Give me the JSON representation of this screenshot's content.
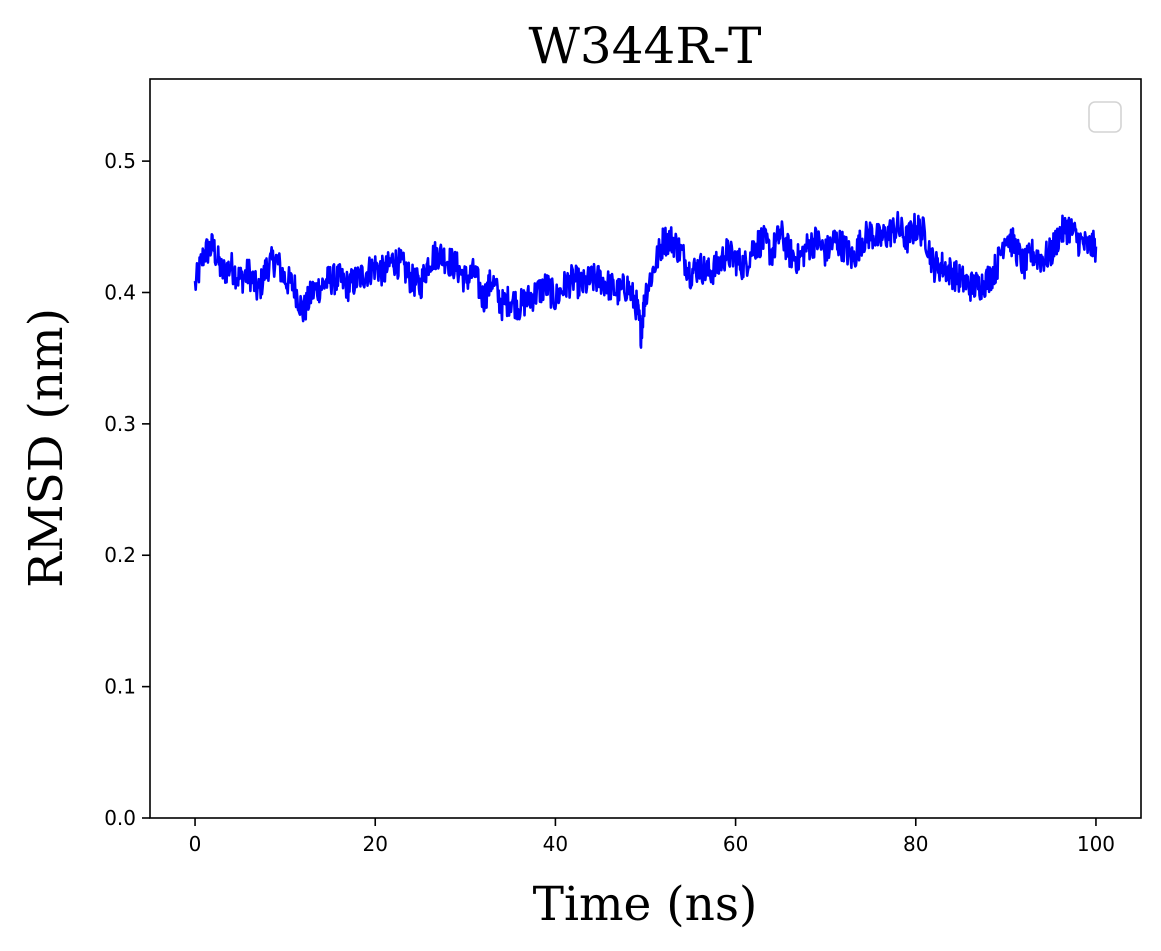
{
  "chart_data": {
    "type": "line",
    "title": "W344R-T",
    "xlabel": "Time (ns)",
    "ylabel": "RMSD (nm)",
    "xlim": [
      -5,
      105
    ],
    "ylim": [
      0.0,
      0.5625
    ],
    "xticks": [
      0,
      20,
      40,
      60,
      80,
      100
    ],
    "yticks": [
      0.0,
      0.1,
      0.2,
      0.3,
      0.4,
      0.5
    ],
    "xtick_labels": [
      "0",
      "20",
      "40",
      "60",
      "80",
      "100"
    ],
    "ytick_labels": [
      "0.0",
      "0.1",
      "0.2",
      "0.3",
      "0.4",
      "0.5"
    ],
    "grid": false,
    "legend": {
      "placement": "top-right",
      "entries": []
    },
    "series": [
      {
        "color": "#0000ff",
        "x": [
          0,
          1,
          2,
          3,
          4,
          5,
          6,
          7,
          8,
          9,
          10,
          11,
          12,
          13,
          14,
          15,
          16,
          17,
          18,
          19,
          20,
          21,
          22,
          23,
          24,
          25,
          26,
          27,
          28,
          29,
          30,
          31,
          32,
          33,
          34,
          35,
          36,
          37,
          38,
          39,
          40,
          41,
          42,
          43,
          44,
          45,
          46,
          47,
          48,
          49,
          49.5,
          50,
          51,
          52,
          53,
          54,
          55,
          56,
          57,
          58,
          59,
          60,
          61,
          62,
          63,
          64,
          65,
          66,
          67,
          68,
          69,
          70,
          71,
          72,
          73,
          74,
          75,
          76,
          77,
          78,
          79,
          80,
          81,
          82,
          83,
          84,
          85,
          86,
          87,
          88,
          89,
          90,
          91,
          92,
          93,
          94,
          95,
          96,
          97,
          98,
          99,
          100
        ],
        "y": [
          0.405,
          0.43,
          0.435,
          0.415,
          0.42,
          0.41,
          0.415,
          0.4,
          0.42,
          0.425,
          0.41,
          0.405,
          0.385,
          0.4,
          0.405,
          0.41,
          0.41,
          0.405,
          0.41,
          0.415,
          0.42,
          0.415,
          0.425,
          0.42,
          0.41,
          0.405,
          0.425,
          0.43,
          0.425,
          0.42,
          0.41,
          0.415,
          0.395,
          0.41,
          0.39,
          0.395,
          0.39,
          0.395,
          0.4,
          0.405,
          0.395,
          0.405,
          0.41,
          0.405,
          0.41,
          0.41,
          0.405,
          0.4,
          0.405,
          0.39,
          0.37,
          0.4,
          0.42,
          0.44,
          0.44,
          0.43,
          0.415,
          0.42,
          0.415,
          0.42,
          0.43,
          0.425,
          0.42,
          0.435,
          0.44,
          0.43,
          0.445,
          0.43,
          0.425,
          0.435,
          0.44,
          0.43,
          0.44,
          0.435,
          0.425,
          0.44,
          0.445,
          0.44,
          0.445,
          0.45,
          0.44,
          0.45,
          0.445,
          0.42,
          0.42,
          0.415,
          0.41,
          0.405,
          0.405,
          0.41,
          0.42,
          0.445,
          0.435,
          0.42,
          0.43,
          0.425,
          0.43,
          0.445,
          0.45,
          0.44,
          0.435,
          0.435
        ]
      }
    ]
  }
}
